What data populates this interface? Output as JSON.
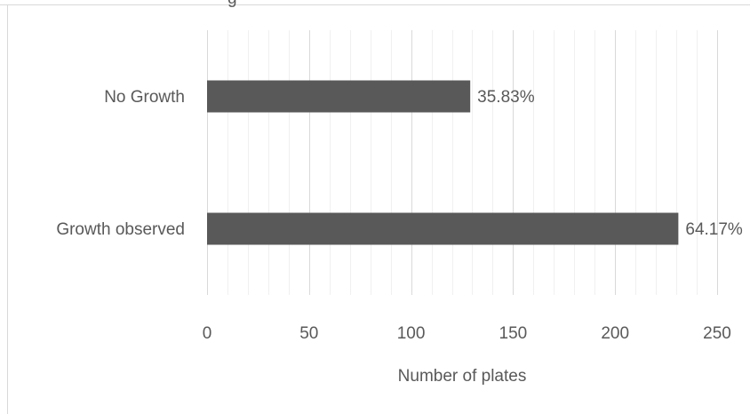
{
  "chart_data": {
    "type": "bar",
    "orientation": "horizontal",
    "title_fragment": "g",
    "categories": [
      "No Growth",
      "Growth observed"
    ],
    "values": [
      129,
      231
    ],
    "data_labels": [
      "35.83%",
      "64.17%"
    ],
    "xlabel": "Number of plates",
    "ylabel": "",
    "xlim": [
      0,
      250
    ],
    "x_ticks": [
      "0",
      "50",
      "100",
      "150",
      "200",
      "250"
    ],
    "grid": "vertical major and minor",
    "legend": "none",
    "colors": {
      "bar": "#595959",
      "text": "#595959",
      "grid_major": "#d9d9d9",
      "grid_minor": "#f0f0f0",
      "border": "#d9d9d9"
    }
  }
}
